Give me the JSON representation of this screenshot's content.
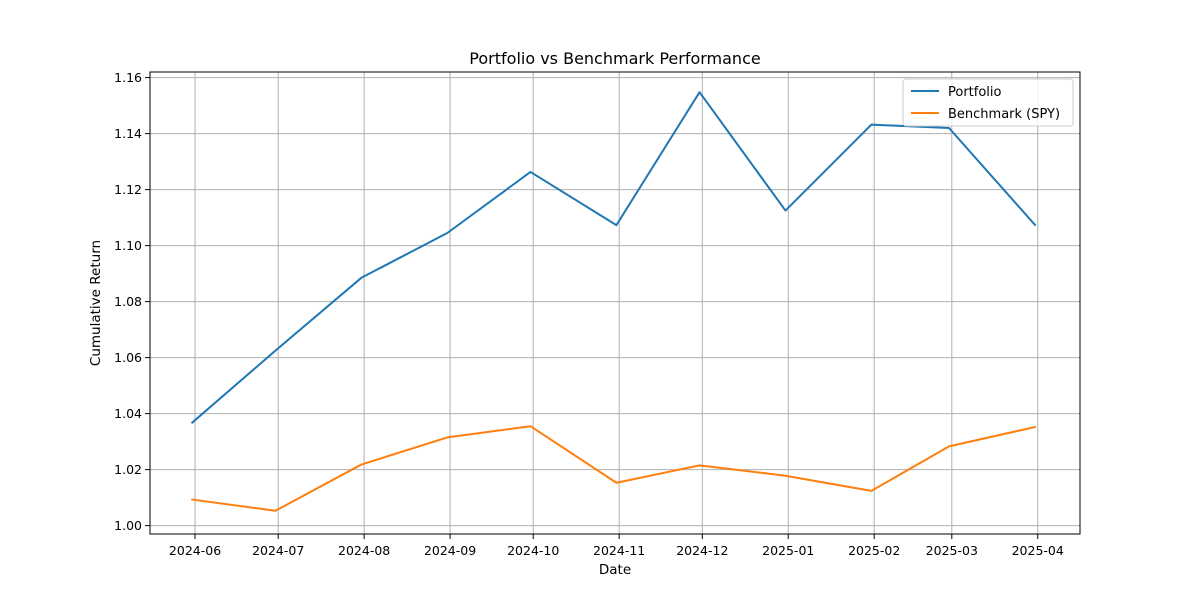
{
  "chart_data": {
    "type": "line",
    "title": "Portfolio vs Benchmark Performance",
    "xlabel": "Date",
    "ylabel": "Cumulative Return",
    "x": [
      "2024-05-31",
      "2024-06-30",
      "2024-07-31",
      "2024-08-31",
      "2024-09-30",
      "2024-10-31",
      "2024-11-30",
      "2024-12-31",
      "2025-01-31",
      "2025-02-28",
      "2025-03-31"
    ],
    "x_ticks": [
      "2024-06",
      "2024-07",
      "2024-08",
      "2024-09",
      "2024-10",
      "2024-11",
      "2024-12",
      "2025-01",
      "2025-02",
      "2025-03",
      "2025-04"
    ],
    "y_ticks": [
      "1.00",
      "1.02",
      "1.04",
      "1.06",
      "1.08",
      "1.10",
      "1.12",
      "1.14",
      "1.16"
    ],
    "ylim": [
      0.997,
      1.162
    ],
    "grid": true,
    "legend_position": "top-right",
    "series": [
      {
        "name": "Portfolio",
        "color": "#1f77b4",
        "values": [
          1.0368,
          1.0625,
          1.0885,
          1.1045,
          1.1263,
          1.1073,
          1.1548,
          1.1125,
          1.1432,
          1.142,
          1.1074
        ]
      },
      {
        "name": "Benchmark (SPY)",
        "color": "#ff7f0e",
        "values": [
          1.0093,
          1.0053,
          1.0218,
          1.0315,
          1.0355,
          1.0153,
          1.0215,
          1.0178,
          1.0124,
          1.0283,
          1.0352
        ]
      }
    ]
  }
}
